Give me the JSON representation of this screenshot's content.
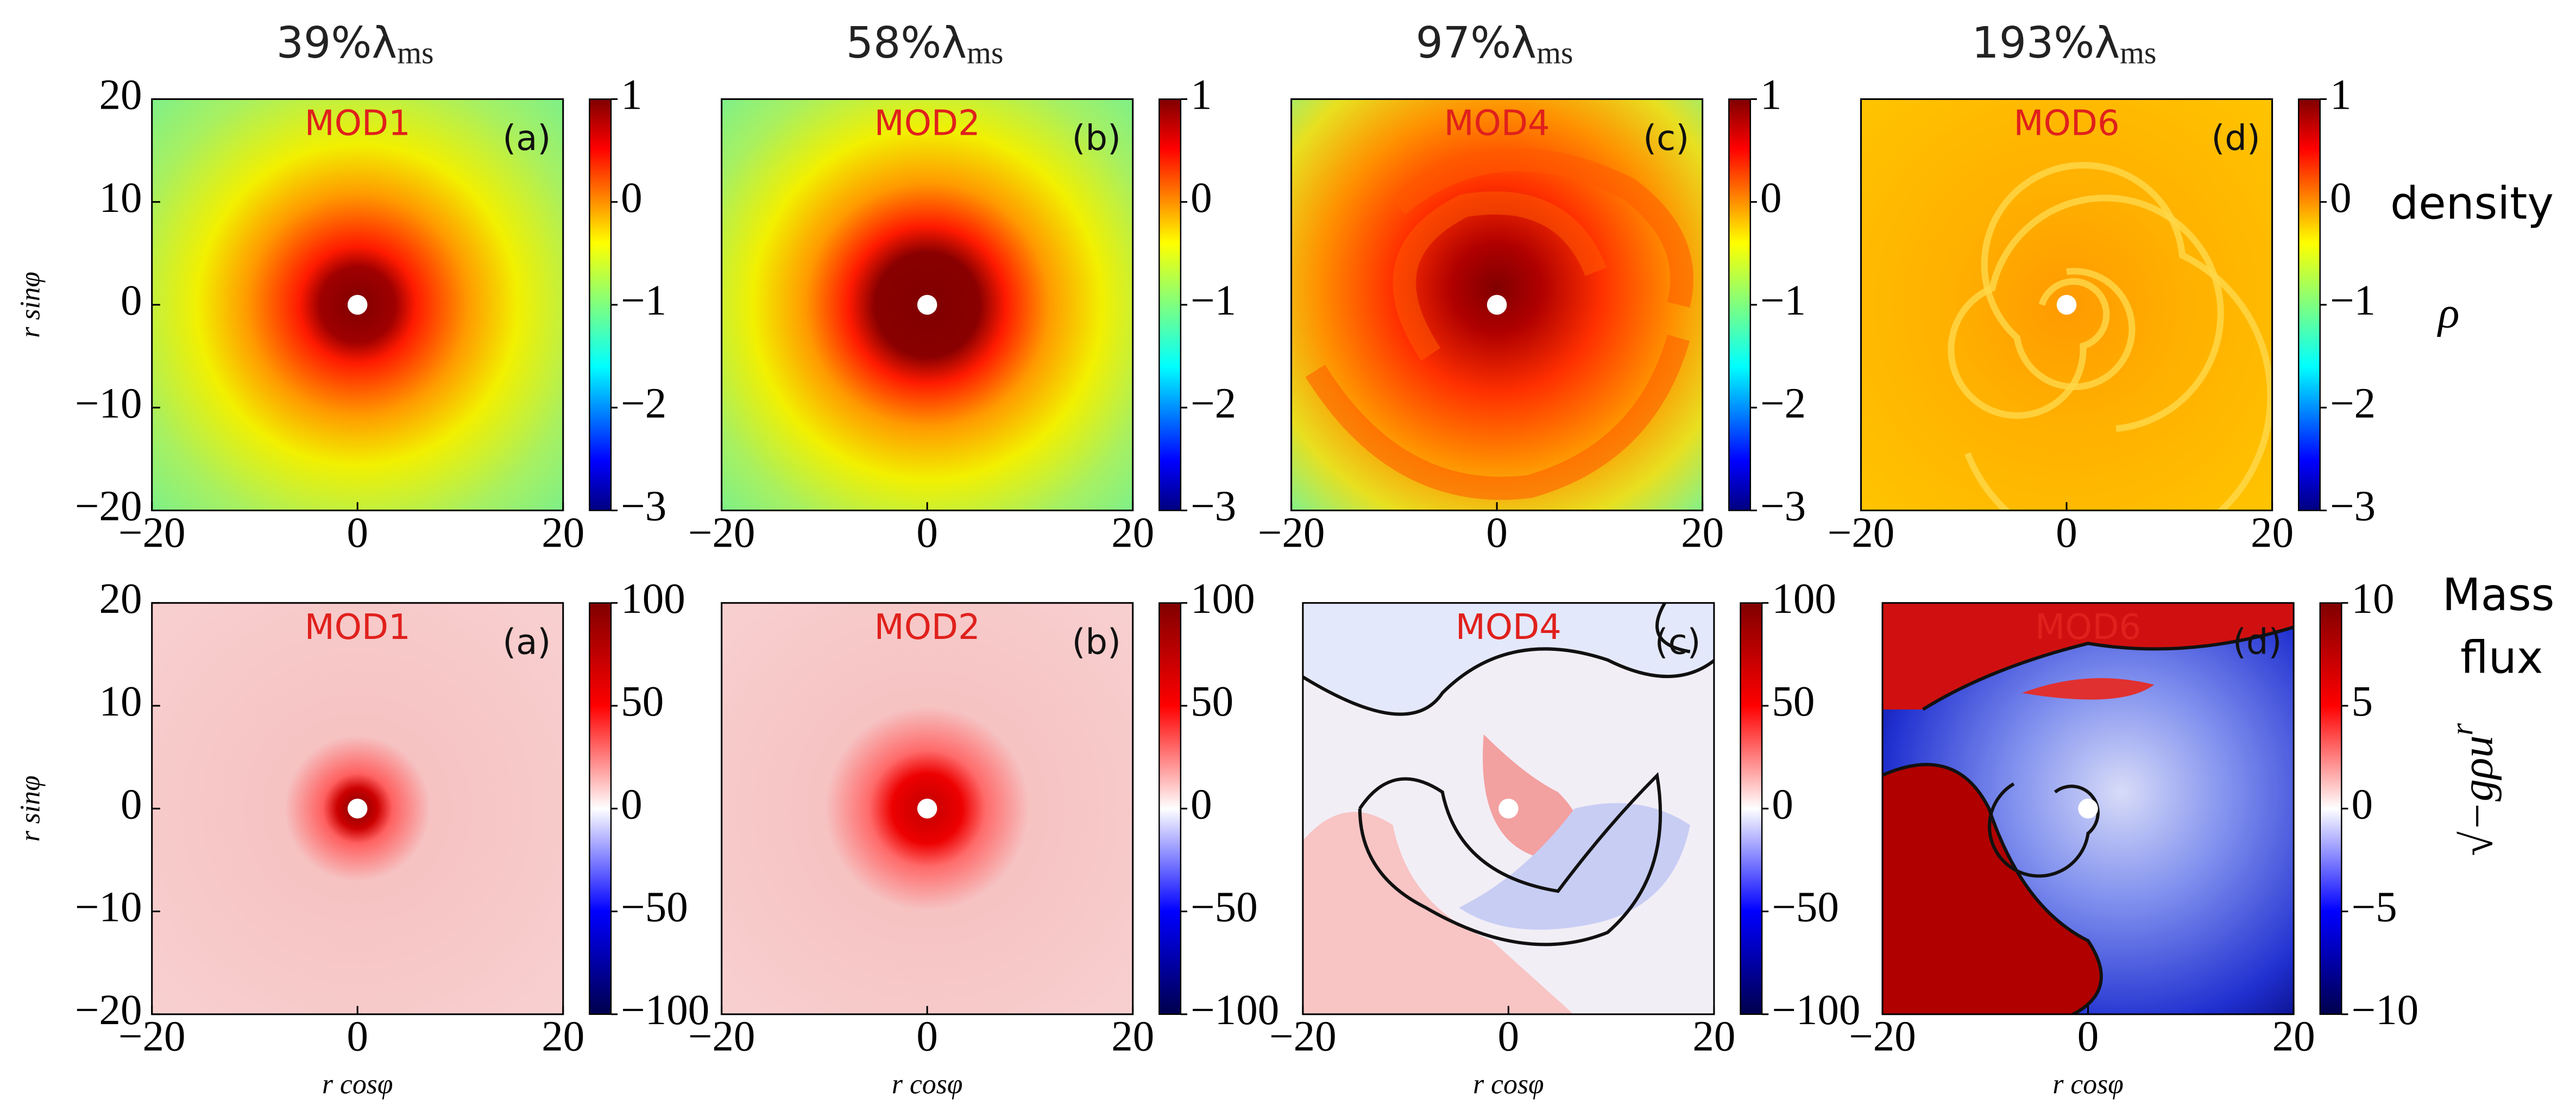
{
  "column_titles": [
    {
      "text": "39%λ",
      "sub": "ms"
    },
    {
      "text": "58%λ",
      "sub": "ms"
    },
    {
      "text": "97%λ",
      "sub": "ms"
    },
    {
      "text": "193%λ",
      "sub": "ms"
    }
  ],
  "row_labels": [
    {
      "lines": [
        "density"
      ],
      "symbol": "ρ"
    },
    {
      "lines": [
        "Mass",
        "flux"
      ],
      "symbol": "√−gρu",
      "symbol_sup": "r"
    }
  ],
  "chart_data": [
    {
      "type": "heatmap",
      "label": "MOD1",
      "tag": "(a)",
      "y_label": "r sinφ",
      "xlim": [
        -20,
        20
      ],
      "ylim": [
        -20,
        20
      ],
      "xticks": [
        {
          "value": -20,
          "label": "−20"
        },
        0,
        20
      ],
      "yticks": [
        {
          "value": -20,
          "label": "−20"
        },
        {
          "value": -10,
          "label": "−10"
        },
        0,
        10,
        20
      ],
      "colorbar": {
        "colormap": "jet",
        "lim": [
          -3,
          1
        ],
        "ticks": [
          {
            "value": -3,
            "label": "−3"
          },
          {
            "value": -2,
            "label": "−2"
          },
          {
            "value": -1,
            "label": "−1"
          },
          0,
          1
        ]
      }
    },
    {
      "type": "heatmap",
      "label": "MOD2",
      "tag": "(b)",
      "xlim": [
        -20,
        20
      ],
      "ylim": [
        -20,
        20
      ],
      "xticks": [
        {
          "value": -20,
          "label": "−20"
        },
        0,
        20
      ],
      "colorbar": {
        "colormap": "jet",
        "lim": [
          -3,
          1
        ],
        "ticks": [
          {
            "value": -3,
            "label": "−3"
          },
          {
            "value": -2,
            "label": "−2"
          },
          {
            "value": -1,
            "label": "−1"
          },
          0,
          1
        ]
      }
    },
    {
      "type": "heatmap",
      "label": "MOD4",
      "tag": "(c)",
      "xlim": [
        -20,
        20
      ],
      "ylim": [
        -20,
        20
      ],
      "xticks": [
        {
          "value": -20,
          "label": "−20"
        },
        0,
        20
      ],
      "colorbar": {
        "colormap": "jet",
        "lim": [
          -3,
          1
        ],
        "ticks": [
          {
            "value": -3,
            "label": "−3"
          },
          {
            "value": -2,
            "label": "−2"
          },
          {
            "value": -1,
            "label": "−1"
          },
          0,
          1
        ]
      }
    },
    {
      "type": "heatmap",
      "label": "MOD6",
      "tag": "(d)",
      "xlim": [
        -20,
        20
      ],
      "ylim": [
        -20,
        20
      ],
      "xticks": [
        {
          "value": -20,
          "label": "−20"
        },
        0,
        20
      ],
      "colorbar": {
        "colormap": "jet",
        "lim": [
          -3,
          1
        ],
        "ticks": [
          {
            "value": -3,
            "label": "−3"
          },
          {
            "value": -2,
            "label": "−2"
          },
          {
            "value": -1,
            "label": "−1"
          },
          0,
          1
        ]
      }
    },
    {
      "type": "heatmap",
      "label": "MOD1",
      "tag": "(a)",
      "x_label": "r cosφ",
      "y_label": "r sinφ",
      "xlim": [
        -20,
        20
      ],
      "ylim": [
        -20,
        20
      ],
      "xticks": [
        {
          "value": -20,
          "label": "−20"
        },
        0,
        20
      ],
      "yticks": [
        {
          "value": -20,
          "label": "−20"
        },
        {
          "value": -10,
          "label": "−10"
        },
        0,
        10,
        20
      ],
      "colorbar": {
        "colormap": "seismic",
        "lim": [
          -100,
          100
        ],
        "ticks": [
          {
            "value": -100,
            "label": "−100"
          },
          {
            "value": -50,
            "label": "−50"
          },
          0,
          50,
          100
        ]
      }
    },
    {
      "type": "heatmap",
      "label": "MOD2",
      "tag": "(b)",
      "x_label": "r cosφ",
      "xlim": [
        -20,
        20
      ],
      "ylim": [
        -20,
        20
      ],
      "xticks": [
        {
          "value": -20,
          "label": "−20"
        },
        0,
        20
      ],
      "colorbar": {
        "colormap": "seismic",
        "lim": [
          -100,
          100
        ],
        "ticks": [
          {
            "value": -100,
            "label": "−100"
          },
          {
            "value": -50,
            "label": "−50"
          },
          0,
          50,
          100
        ]
      }
    },
    {
      "type": "heatmap",
      "label": "MOD4",
      "tag": "(c)",
      "x_label": "r cosφ",
      "xlim": [
        -20,
        20
      ],
      "ylim": [
        -20,
        20
      ],
      "xticks": [
        {
          "value": -20,
          "label": "−20"
        },
        0,
        20
      ],
      "colorbar": {
        "colormap": "seismic",
        "lim": [
          -100,
          100
        ],
        "ticks": [
          {
            "value": -100,
            "label": "−100"
          },
          {
            "value": -50,
            "label": "−50"
          },
          0,
          50,
          100
        ]
      }
    },
    {
      "type": "heatmap",
      "label": "MOD6",
      "tag": "(d)",
      "x_label": "r cosφ",
      "xlim": [
        -20,
        20
      ],
      "ylim": [
        -20,
        20
      ],
      "xticks": [
        {
          "value": -20,
          "label": "−20"
        },
        0,
        20
      ],
      "colorbar": {
        "colormap": "seismic",
        "lim": [
          -10,
          10
        ],
        "ticks": [
          {
            "value": -10,
            "label": "−10"
          },
          {
            "value": -5,
            "label": "−5"
          },
          0,
          5,
          10
        ]
      }
    }
  ]
}
